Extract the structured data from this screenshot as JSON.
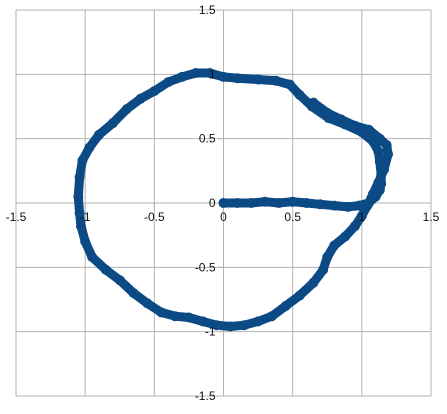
{
  "chart_data": {
    "type": "scatter",
    "title": "",
    "xlabel": "",
    "ylabel": "",
    "xlim": [
      -1.5,
      1.5
    ],
    "ylim": [
      -1.5,
      1.5
    ],
    "x_ticks": [
      -1.5,
      -1,
      -0.5,
      0,
      0.5,
      1,
      1.5
    ],
    "y_ticks": [
      -1.5,
      -1,
      -0.5,
      0,
      0.5,
      1,
      1.5
    ],
    "x_tick_labels": [
      "-1.5",
      "-1",
      "-0.5",
      "0",
      "0.5",
      "1",
      "1.5"
    ],
    "y_tick_labels": [
      "-1.5",
      "-1",
      "-0.5",
      "0",
      "0.5",
      "1",
      "1.5"
    ],
    "grid": true,
    "legend": "none",
    "series": [
      {
        "color": "#0c4a86",
        "points": [
          [
            0.0,
            0.0
          ],
          [
            0.1,
            0.0
          ],
          [
            0.2,
            0.0
          ],
          [
            0.3,
            0.01
          ],
          [
            0.4,
            0.0
          ],
          [
            0.5,
            0.01
          ],
          [
            0.6,
            0.0
          ],
          [
            0.7,
            -0.01
          ],
          [
            0.8,
            -0.02
          ],
          [
            0.9,
            -0.03
          ],
          [
            0.98,
            -0.02
          ],
          [
            1.05,
            0.0
          ],
          [
            1.1,
            0.05
          ],
          [
            1.13,
            0.1
          ],
          [
            1.14,
            0.15
          ],
          [
            1.14,
            0.22
          ],
          [
            1.13,
            0.32
          ],
          [
            1.12,
            0.4
          ],
          [
            1.08,
            0.48
          ],
          [
            1.0,
            0.55
          ],
          [
            0.88,
            0.61
          ],
          [
            0.76,
            0.66
          ],
          [
            0.64,
            0.75
          ],
          [
            0.55,
            0.84
          ],
          [
            0.48,
            0.92
          ],
          [
            0.38,
            0.95
          ],
          [
            0.25,
            0.96
          ],
          [
            0.1,
            0.97
          ],
          [
            0.0,
            0.98
          ],
          [
            -0.1,
            1.01
          ],
          [
            -0.2,
            1.01
          ],
          [
            -0.3,
            0.98
          ],
          [
            -0.4,
            0.94
          ],
          [
            -0.5,
            0.87
          ],
          [
            -0.6,
            0.81
          ],
          [
            -0.7,
            0.73
          ],
          [
            -0.8,
            0.62
          ],
          [
            -0.9,
            0.53
          ],
          [
            -0.97,
            0.43
          ],
          [
            -1.02,
            0.33
          ],
          [
            -1.04,
            0.2
          ],
          [
            -1.05,
            0.05
          ],
          [
            -1.04,
            -0.08
          ],
          [
            -1.03,
            -0.18
          ],
          [
            -1.0,
            -0.3
          ],
          [
            -0.95,
            -0.42
          ],
          [
            -0.85,
            -0.52
          ],
          [
            -0.75,
            -0.6
          ],
          [
            -0.65,
            -0.7
          ],
          [
            -0.55,
            -0.78
          ],
          [
            -0.45,
            -0.85
          ],
          [
            -0.35,
            -0.88
          ],
          [
            -0.25,
            -0.89
          ],
          [
            -0.15,
            -0.92
          ],
          [
            -0.05,
            -0.95
          ],
          [
            0.05,
            -0.96
          ],
          [
            0.15,
            -0.95
          ],
          [
            0.25,
            -0.92
          ],
          [
            0.35,
            -0.88
          ],
          [
            0.45,
            -0.8
          ],
          [
            0.55,
            -0.72
          ],
          [
            0.65,
            -0.62
          ],
          [
            0.72,
            -0.52
          ],
          [
            0.75,
            -0.42
          ],
          [
            0.8,
            -0.33
          ],
          [
            0.88,
            -0.26
          ],
          [
            0.95,
            -0.18
          ],
          [
            1.0,
            -0.1
          ],
          [
            1.04,
            -0.02
          ],
          [
            1.08,
            0.07
          ],
          [
            1.12,
            0.16
          ],
          [
            1.16,
            0.26
          ],
          [
            1.19,
            0.38
          ],
          [
            1.18,
            0.45
          ],
          [
            1.13,
            0.5
          ],
          [
            1.05,
            0.57
          ],
          [
            0.95,
            0.6
          ],
          [
            0.85,
            0.65
          ],
          [
            0.75,
            0.7
          ],
          [
            0.65,
            0.78
          ]
        ]
      }
    ]
  }
}
